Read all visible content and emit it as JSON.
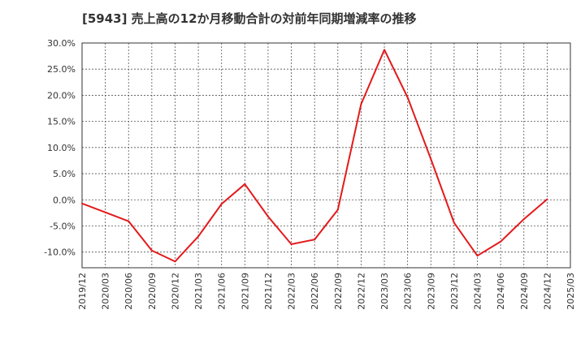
{
  "chart_data": {
    "type": "line",
    "title": "[5943]  売上高の12か月移動合計の対前年同期増減率の推移",
    "xlabel": "",
    "ylabel": "",
    "ylim": [
      -13,
      30
    ],
    "grid": true,
    "y_ticks": [
      30,
      25,
      20,
      15,
      10,
      5,
      0,
      -5,
      -10
    ],
    "y_tick_labels": [
      "30.0%",
      "25.0%",
      "20.0%",
      "15.0%",
      "10.0%",
      "5.0%",
      "0.0%",
      "-5.0%",
      "-10.0%"
    ],
    "x_tick_labels": [
      "2019/12",
      "2020/03",
      "2020/06",
      "2020/09",
      "2020/12",
      "2021/03",
      "2021/06",
      "2021/09",
      "2021/12",
      "2022/03",
      "2022/06",
      "2022/09",
      "2022/12",
      "2023/03",
      "2023/06",
      "2023/09",
      "2023/12",
      "2024/03",
      "2024/06",
      "2024/09",
      "2024/12",
      "2025/03"
    ],
    "series": [
      {
        "name": "対前年同期増減率",
        "color": "#e31a1c",
        "x": [
          "2019/12",
          "2020/03",
          "2020/06",
          "2020/09",
          "2020/12",
          "2021/03",
          "2021/06",
          "2021/09",
          "2021/12",
          "2022/03",
          "2022/06",
          "2022/09",
          "2022/12",
          "2023/03",
          "2023/06",
          "2023/09",
          "2023/12",
          "2024/03",
          "2024/06",
          "2024/09",
          "2024/12"
        ],
        "values": [
          -0.7,
          -2.4,
          -4.1,
          -9.7,
          -11.8,
          -7.0,
          -0.8,
          3.0,
          -3.2,
          -8.5,
          -7.6,
          -1.9,
          18.3,
          28.7,
          19.6,
          7.8,
          -4.4,
          -10.7,
          -8.0,
          -3.7,
          0.1
        ]
      }
    ]
  }
}
